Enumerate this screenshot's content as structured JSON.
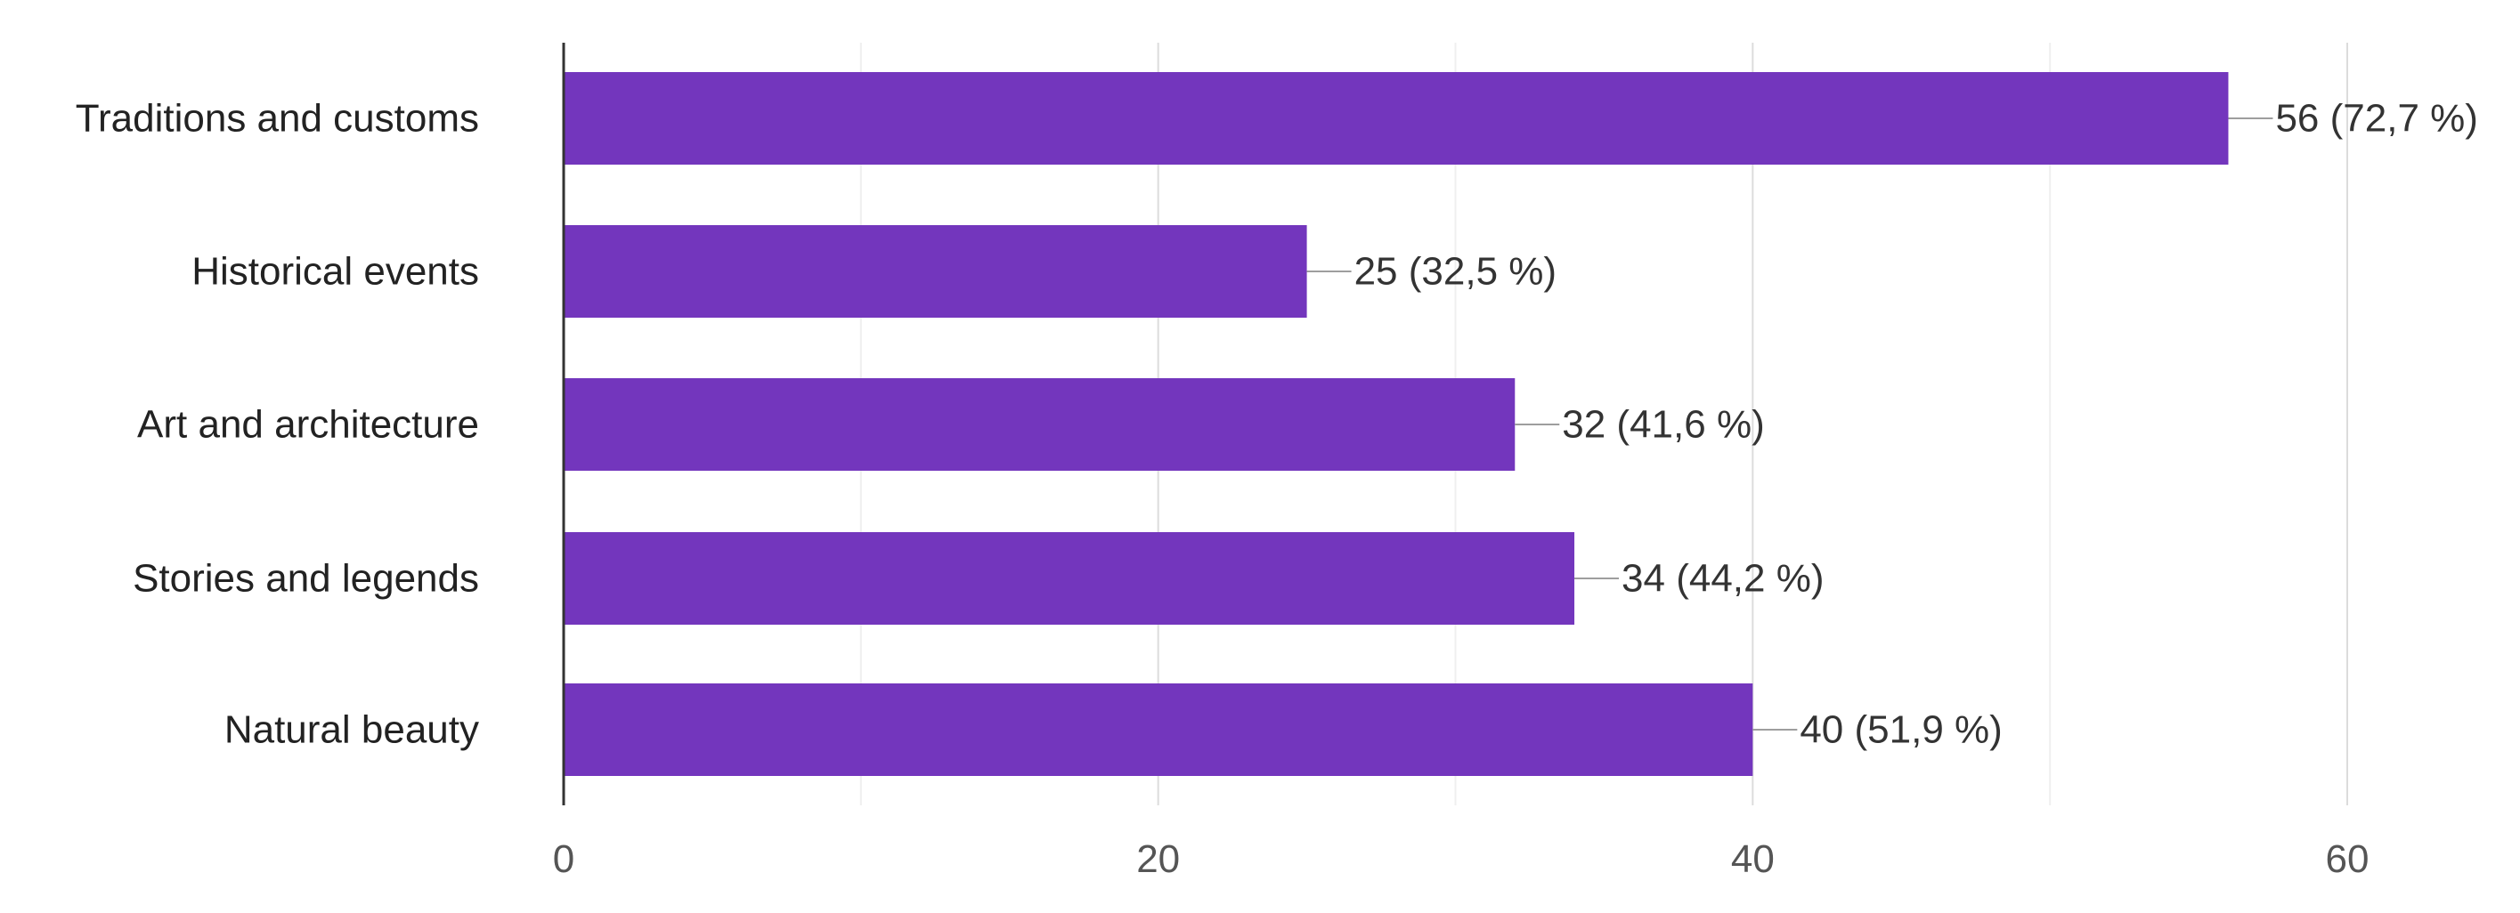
{
  "chart_data": {
    "type": "bar",
    "orientation": "horizontal",
    "categories": [
      "Traditions and customs",
      "Historical events",
      "Art and architecture",
      "Stories and legends",
      "Natural beauty"
    ],
    "values": [
      56,
      25,
      32,
      34,
      40
    ],
    "data_labels": [
      "56 (72,7 %)",
      "25 (32,5 %)",
      "32 (41,6 %)",
      "34 (44,2 %)",
      "40 (51,9 %)"
    ],
    "xlim": [
      0,
      60
    ],
    "x_ticks": [
      0,
      20,
      40,
      60
    ],
    "x_tick_labels": [
      "0",
      "20",
      "40",
      "60"
    ],
    "grid": true,
    "legend": "none",
    "bar_color": "#7336bd",
    "title": "",
    "xlabel": "",
    "ylabel": ""
  }
}
